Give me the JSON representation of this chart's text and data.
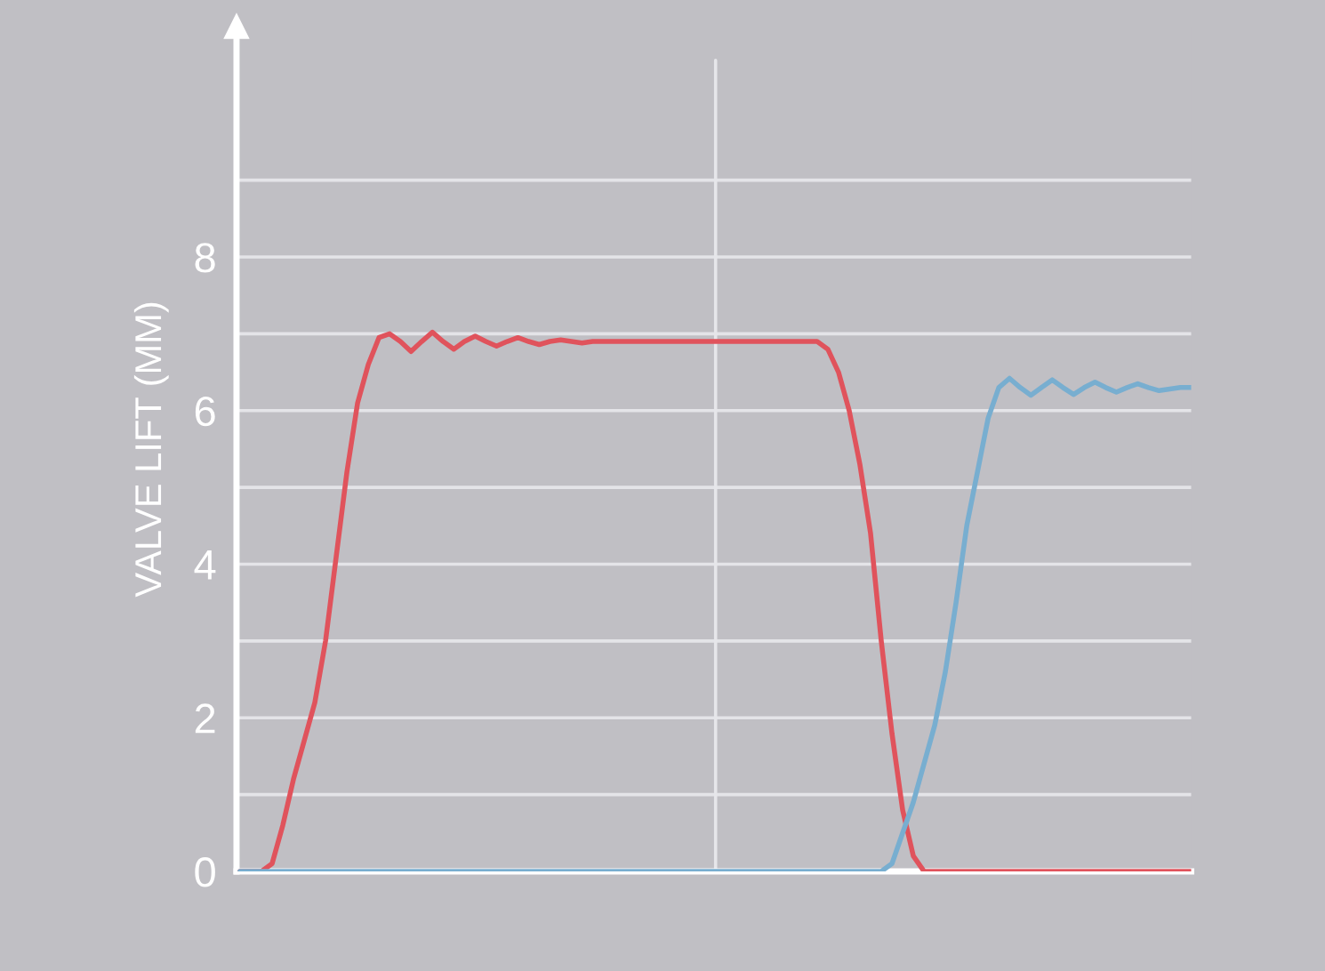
{
  "chart_data": {
    "type": "line",
    "ylabel": "VALVE LIFT (MM)",
    "categories": [
      null,
      null,
      null,
      null,
      null,
      null,
      null,
      null,
      null,
      null,
      null,
      null,
      null,
      null,
      null,
      null,
      null,
      null,
      null,
      null,
      null,
      null,
      null,
      null,
      null,
      null,
      null,
      null,
      null,
      null,
      null,
      null,
      null,
      null,
      null,
      null,
      null,
      null,
      null,
      null,
      null,
      null,
      null,
      null,
      null,
      null,
      null,
      null,
      null,
      null,
      null,
      null,
      null,
      null,
      null,
      null,
      null,
      null,
      null,
      null,
      null,
      null,
      null,
      null,
      null,
      null,
      null,
      null,
      null,
      null,
      null,
      null,
      null,
      null,
      null,
      null,
      null,
      null,
      null,
      null,
      null,
      null,
      null,
      null,
      null,
      null,
      null,
      null,
      null,
      null
    ],
    "series": [
      {
        "color": "#e0535c",
        "values": [
          0,
          0,
          0,
          0.1,
          0.6,
          1.2,
          1.7,
          2.2,
          3.0,
          4.1,
          5.2,
          6.1,
          6.6,
          6.95,
          7.0,
          6.9,
          6.77,
          6.9,
          7.02,
          6.9,
          6.8,
          6.9,
          6.97,
          6.9,
          6.84,
          6.9,
          6.95,
          6.9,
          6.86,
          6.9,
          6.92,
          6.9,
          6.88,
          6.9,
          6.9,
          6.9,
          6.9,
          6.9,
          6.9,
          6.9,
          6.9,
          6.9,
          6.9,
          6.9,
          6.9,
          6.9,
          6.9,
          6.9,
          6.9,
          6.9,
          6.9,
          6.9,
          6.9,
          6.9,
          6.9,
          6.8,
          6.5,
          6.0,
          5.3,
          4.4,
          3.0,
          1.8,
          0.8,
          0.2,
          0,
          0,
          0,
          0,
          0,
          0,
          0,
          0,
          0,
          0,
          0,
          0,
          0,
          0,
          0,
          0,
          0,
          0,
          0,
          0,
          0,
          0,
          0,
          0,
          0,
          0
        ]
      },
      {
        "color": "#78aed0",
        "values": [
          0,
          0,
          0,
          0,
          0,
          0,
          0,
          0,
          0,
          0,
          0,
          0,
          0,
          0,
          0,
          0,
          0,
          0,
          0,
          0,
          0,
          0,
          0,
          0,
          0,
          0,
          0,
          0,
          0,
          0,
          0,
          0,
          0,
          0,
          0,
          0,
          0,
          0,
          0,
          0,
          0,
          0,
          0,
          0,
          0,
          0,
          0,
          0,
          0,
          0,
          0,
          0,
          0,
          0,
          0,
          0,
          0,
          0,
          0,
          0,
          0,
          0.1,
          0.5,
          0.9,
          1.4,
          1.9,
          2.6,
          3.5,
          4.5,
          5.2,
          5.9,
          6.3,
          6.42,
          6.3,
          6.2,
          6.3,
          6.4,
          6.3,
          6.21,
          6.3,
          6.37,
          6.3,
          6.24,
          6.3,
          6.35,
          6.3,
          6.26,
          6.28,
          6.3,
          6.3
        ]
      }
    ],
    "ylim": [
      0,
      11
    ],
    "yticks": [
      0,
      {
        "value": 1,
        "label": null
      },
      2,
      {
        "value": 3,
        "label": null
      },
      4,
      {
        "value": 5,
        "label": null
      },
      6,
      {
        "value": 7,
        "label": null
      },
      8,
      {
        "value": 9,
        "label": null
      }
    ],
    "grid": "y"
  }
}
